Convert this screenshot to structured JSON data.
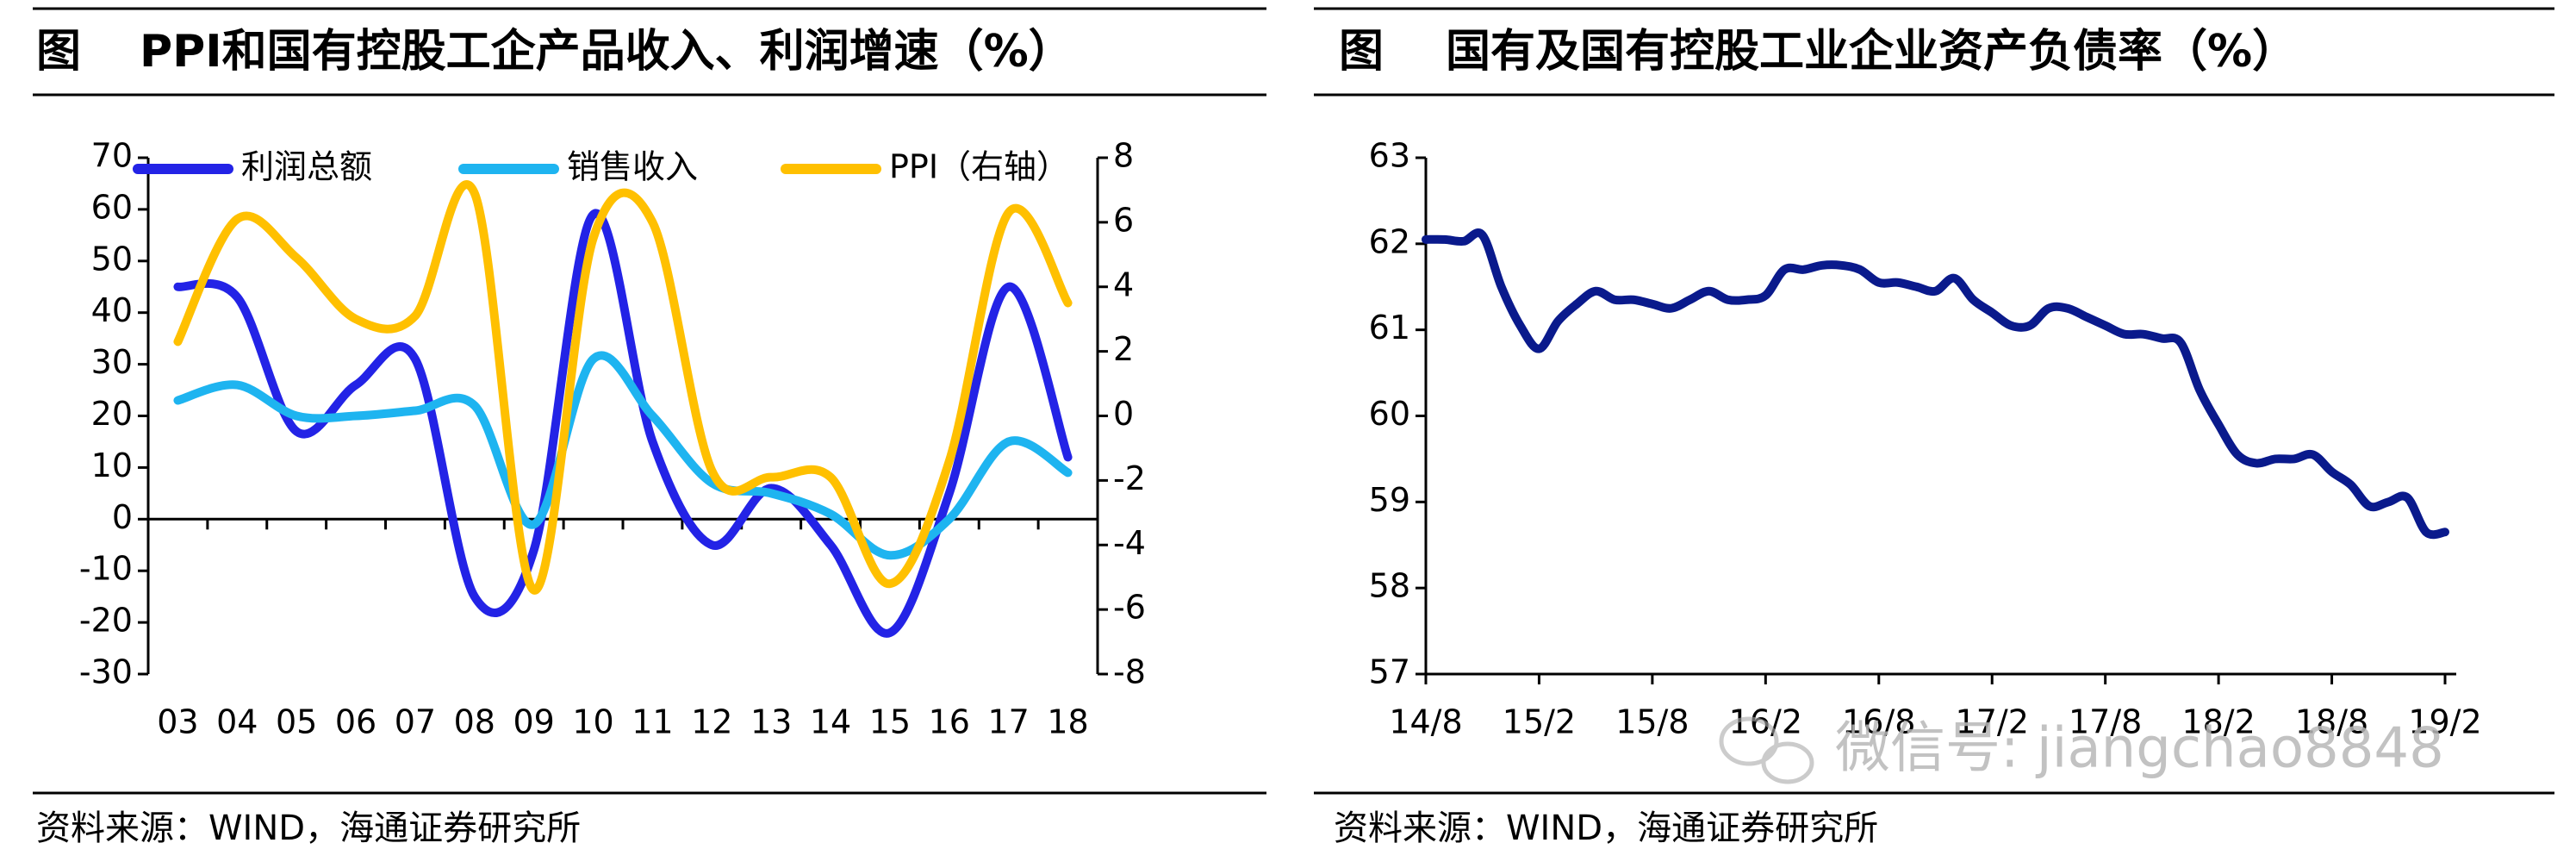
{
  "watermark": "微信号: jiangchao8848",
  "chart_data": [
    {
      "type": "line",
      "figure_label": "图",
      "title": "PPI和国有控股工企产品收入、利润增速（%）",
      "source": "资料来源：WIND，海通证券研究所",
      "categories": [
        "03",
        "04",
        "05",
        "06",
        "07",
        "08",
        "09",
        "10",
        "11",
        "12",
        "13",
        "14",
        "15",
        "16",
        "17",
        "18"
      ],
      "series": [
        {
          "name": "利润总额",
          "color": "#2323e6",
          "values": [
            45,
            43,
            17,
            26,
            31,
            -15,
            -6,
            59,
            15,
            -5,
            6,
            -5,
            -22,
            5,
            45,
            12
          ]
        },
        {
          "name": "销售收入",
          "color": "#1eb4f0",
          "values": [
            23,
            26,
            20,
            20,
            21,
            22,
            -1,
            31,
            20,
            7,
            5,
            1,
            -7,
            0,
            15,
            9
          ]
        },
        {
          "name": "PPI（右轴）",
          "color": "#ffc000",
          "axis": "y2",
          "values": [
            2.3,
            6.1,
            4.9,
            3.0,
            3.1,
            6.9,
            -5.4,
            5.5,
            6.0,
            -1.7,
            -1.9,
            -1.9,
            -5.2,
            -1.4,
            6.3,
            3.5
          ]
        }
      ],
      "ylim": [
        -30,
        70
      ],
      "yticks": [
        -30,
        -20,
        -10,
        0,
        10,
        20,
        30,
        40,
        50,
        60,
        70
      ],
      "y2lim": [
        -8,
        8
      ],
      "y2ticks": [
        -8,
        -6,
        -4,
        -2,
        0,
        2,
        4,
        6,
        8
      ]
    },
    {
      "type": "line",
      "figure_label": "图",
      "title": "国有及国有控股工业企业资产负债率（%）",
      "source": "资料来源：WIND，海通证券研究所",
      "categories": [
        "14/8",
        null,
        null,
        null,
        null,
        null,
        "15/2",
        null,
        null,
        null,
        null,
        null,
        "15/8",
        null,
        null,
        null,
        null,
        null,
        "16/2",
        null,
        null,
        null,
        null,
        null,
        "16/8",
        null,
        null,
        null,
        null,
        null,
        "17/2",
        null,
        null,
        null,
        null,
        null,
        "17/8",
        null,
        null,
        null,
        null,
        null,
        "18/2",
        null,
        null,
        null,
        null,
        null,
        "18/8",
        null,
        null,
        null,
        null,
        null,
        "19/2"
      ],
      "color": "#0a1a8c",
      "values": [
        62.05,
        62.05,
        62.03,
        62.1,
        61.5,
        61.05,
        60.78,
        61.1,
        61.3,
        61.45,
        61.35,
        61.35,
        61.3,
        61.25,
        61.35,
        61.45,
        61.35,
        61.35,
        61.4,
        61.7,
        61.7,
        61.75,
        61.75,
        61.7,
        61.55,
        61.55,
        61.5,
        61.45,
        61.6,
        61.35,
        61.2,
        61.05,
        61.05,
        61.25,
        61.25,
        61.15,
        61.05,
        60.95,
        60.95,
        60.9,
        60.85,
        60.3,
        59.9,
        59.55,
        59.45,
        59.5,
        59.5,
        59.55,
        59.35,
        59.2,
        58.95,
        59.0,
        59.05,
        58.65,
        58.65
      ],
      "ylim": [
        57,
        63
      ],
      "yticks": [
        57,
        58,
        59,
        60,
        61,
        62,
        63
      ]
    }
  ]
}
